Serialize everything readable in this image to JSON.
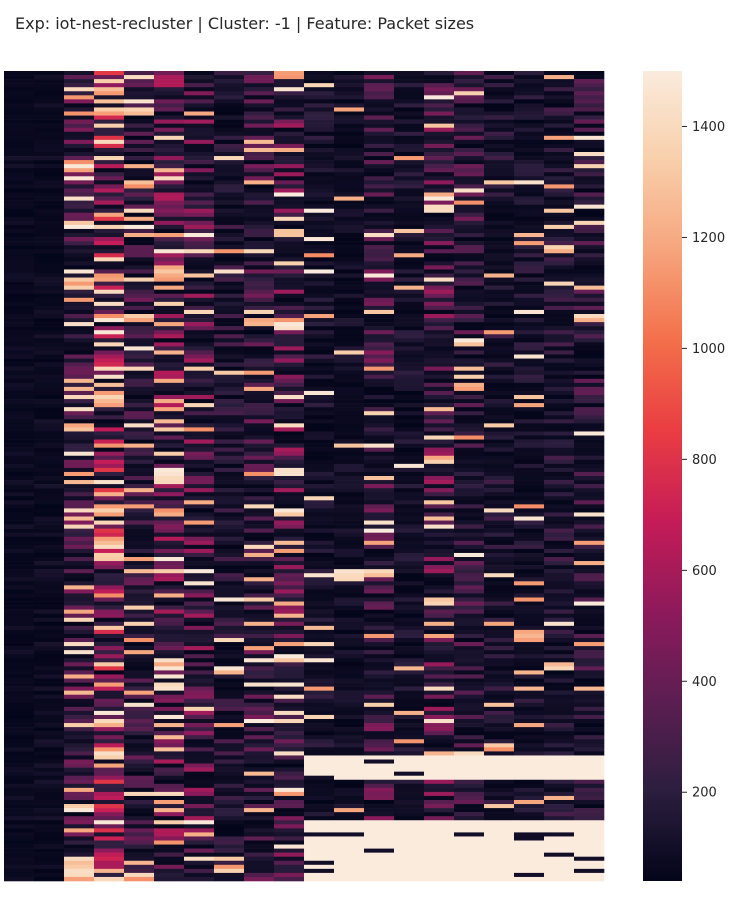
{
  "chart_data": {
    "type": "heatmap",
    "title": "Exp: iot-nest-recluster | Cluster: -1 | Feature: Packet sizes",
    "columns": 20,
    "rows": 200,
    "colormap": "rocket",
    "colorbar": {
      "vmin": 40,
      "vmax": 1500,
      "ticks": [
        200,
        400,
        600,
        800,
        1000,
        1200,
        1400
      ]
    },
    "grid": false,
    "axis_ticks_visible": false,
    "colormap_stops": [
      "#03051a",
      "#2c1e3e",
      "#5c1e52",
      "#8e1a5b",
      "#c51c57",
      "#e93d42",
      "#f36f4a",
      "#f6a47c",
      "#f8cfaa",
      "#faebdd"
    ],
    "column_profiles": {
      "base_levels": [
        60,
        65,
        240,
        420,
        220,
        320,
        300,
        160,
        230,
        300,
        120,
        80,
        260,
        110,
        300,
        220,
        140,
        120,
        150,
        200
      ],
      "bright_probability": [
        0.0,
        0.0,
        0.22,
        0.25,
        0.12,
        0.2,
        0.15,
        0.05,
        0.1,
        0.15,
        0.06,
        0.05,
        0.08,
        0.06,
        0.08,
        0.06,
        0.05,
        0.05,
        0.06,
        0.1
      ],
      "saturated_block_rows": [
        [
          169,
          175
        ],
        [
          185,
          200
        ]
      ],
      "saturated_block_first_column": 10,
      "saturated_value": 1500
    }
  }
}
